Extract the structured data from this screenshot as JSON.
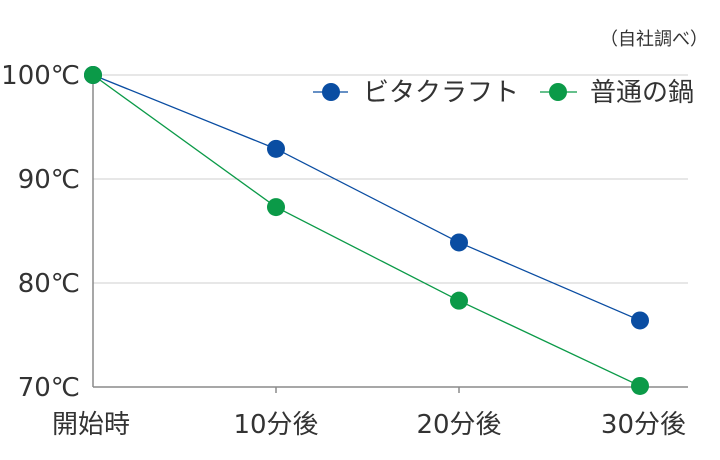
{
  "chart_data": {
    "type": "line",
    "note": "（自社調べ）",
    "categories": [
      "開始時",
      "10分後",
      "20分後",
      "30分後"
    ],
    "y_ticks": [
      "70℃",
      "80℃",
      "90℃",
      "100℃"
    ],
    "y_tick_values": [
      70,
      80,
      90,
      100
    ],
    "ylim": [
      70,
      100
    ],
    "grid": true,
    "legend_position": "top-right",
    "series": [
      {
        "name": "ビタクラフト",
        "color": "#0a4da2",
        "values": [
          100,
          92.9,
          83.9,
          76.4
        ]
      },
      {
        "name": "普通の鍋",
        "color": "#0b9a48",
        "values": [
          100,
          87.3,
          78.3,
          70.1
        ]
      }
    ]
  }
}
